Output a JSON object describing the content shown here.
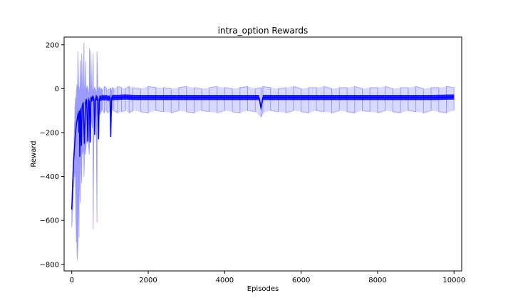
{
  "chart_data": {
    "type": "line",
    "title": "intra_option Rewards",
    "xlabel": "Episodes",
    "ylabel": "Reward",
    "xlim": [
      -200,
      10200
    ],
    "ylim": [
      -830,
      235
    ],
    "xticks": [
      0,
      2000,
      4000,
      6000,
      8000,
      10000
    ],
    "yticks": [
      200,
      0,
      -200,
      -400,
      -600,
      -800
    ],
    "grid": false,
    "legend": "none",
    "series": [
      {
        "role": "raw",
        "color": "#0000ff",
        "opacity": 0.3,
        "x": [
          0,
          10,
          20,
          35,
          50,
          60,
          70,
          80,
          100,
          120,
          140,
          160,
          180,
          190,
          200,
          220,
          240,
          260,
          280,
          300,
          320,
          340,
          360,
          380,
          400,
          420,
          440,
          460,
          480,
          500,
          520,
          540,
          560,
          580,
          600,
          620,
          640,
          660,
          680,
          700,
          720,
          740,
          760,
          780,
          800,
          850,
          900,
          950,
          1000,
          1020,
          1040,
          1060,
          1100,
          1200,
          1300,
          1400,
          1500,
          1600,
          1800,
          2000,
          2200,
          2400,
          2600,
          2800,
          3000,
          3200,
          3400,
          3600,
          3800,
          4000,
          4200,
          4400,
          4600,
          4800,
          4950,
          5000,
          5200,
          5400,
          5600,
          5800,
          6000,
          6200,
          6400,
          6600,
          6800,
          7000,
          7200,
          7400,
          7600,
          7800,
          8000,
          8200,
          8400,
          8600,
          8800,
          9000,
          9200,
          9400,
          9600,
          9800,
          10000
        ],
        "y_upper": [
          -520,
          -480,
          -420,
          -350,
          -280,
          -220,
          -150,
          -90,
          -40,
          -10,
          20,
          170,
          0,
          10,
          -10,
          130,
          -5,
          160,
          20,
          0,
          210,
          -10,
          125,
          0,
          15,
          5,
          -20,
          185,
          -5,
          175,
          5,
          -15,
          160,
          -5,
          10,
          0,
          -20,
          170,
          5,
          0,
          10,
          -10,
          5,
          0,
          -5,
          10,
          5,
          -5,
          0,
          5,
          -10,
          5,
          0,
          10,
          5,
          0,
          10,
          5,
          0,
          10,
          5,
          5,
          0,
          5,
          10,
          5,
          0,
          5,
          10,
          5,
          0,
          5,
          10,
          0,
          5,
          10,
          5,
          0,
          5,
          10,
          0,
          5,
          5,
          10,
          0,
          5,
          5,
          10,
          0,
          5,
          5,
          10,
          0,
          5,
          5,
          10,
          0,
          5,
          5,
          10,
          5
        ],
        "y_lower": [
          -630,
          -600,
          -560,
          -500,
          -450,
          -420,
          -400,
          -380,
          -500,
          -700,
          -780,
          -720,
          -520,
          -680,
          -420,
          -520,
          -350,
          -430,
          -300,
          -280,
          -400,
          -270,
          -300,
          -240,
          -250,
          -180,
          -260,
          -300,
          -200,
          -240,
          -150,
          -180,
          -640,
          -160,
          -130,
          -120,
          -180,
          -610,
          -120,
          -110,
          -100,
          -120,
          -110,
          -100,
          -95,
          -110,
          -100,
          -110,
          -105,
          -100,
          -110,
          -95,
          -100,
          -110,
          -105,
          -100,
          -110,
          -100,
          -105,
          -110,
          -100,
          -105,
          -110,
          -100,
          -105,
          -110,
          -100,
          -105,
          -110,
          -100,
          -105,
          -110,
          -100,
          -105,
          -130,
          -110,
          -100,
          -105,
          -110,
          -100,
          -105,
          -110,
          -100,
          -105,
          -110,
          -100,
          -105,
          -110,
          -100,
          -105,
          -110,
          -100,
          -105,
          -110,
          -100,
          -105,
          -110,
          -100,
          -105,
          -110,
          -100
        ]
      },
      {
        "role": "smoothed",
        "color": "#0000ff",
        "opacity": 1.0,
        "x": [
          0,
          15,
          30,
          45,
          60,
          75,
          90,
          110,
          130,
          150,
          170,
          190,
          200,
          210,
          230,
          250,
          270,
          300,
          330,
          360,
          390,
          420,
          440,
          460,
          480,
          500,
          520,
          550,
          580,
          600,
          620,
          650,
          680,
          700,
          720,
          740,
          760,
          800,
          850,
          900,
          950,
          1000,
          1020,
          1040,
          1100,
          1200,
          1400,
          1600,
          2000,
          2500,
          3000,
          3500,
          4000,
          4500,
          4900,
          4950,
          5000,
          5500,
          6000,
          6500,
          7000,
          7500,
          8000,
          8500,
          9000,
          9500,
          10000
        ],
        "y": [
          -550,
          -480,
          -400,
          -340,
          -300,
          -260,
          -220,
          -180,
          -150,
          -130,
          -110,
          -200,
          -100,
          -310,
          -90,
          -260,
          -80,
          -70,
          -250,
          -60,
          -55,
          -240,
          -50,
          -60,
          -245,
          -45,
          -50,
          -40,
          -50,
          -210,
          -45,
          -40,
          -50,
          -230,
          -45,
          -42,
          -45,
          -40,
          -42,
          -40,
          -45,
          -40,
          -220,
          -42,
          -40,
          -40,
          -38,
          -40,
          -40,
          -40,
          -40,
          -40,
          -40,
          -40,
          -40,
          -90,
          -40,
          -40,
          -40,
          -40,
          -40,
          -40,
          -40,
          -40,
          -40,
          -40,
          -38
        ]
      }
    ]
  }
}
